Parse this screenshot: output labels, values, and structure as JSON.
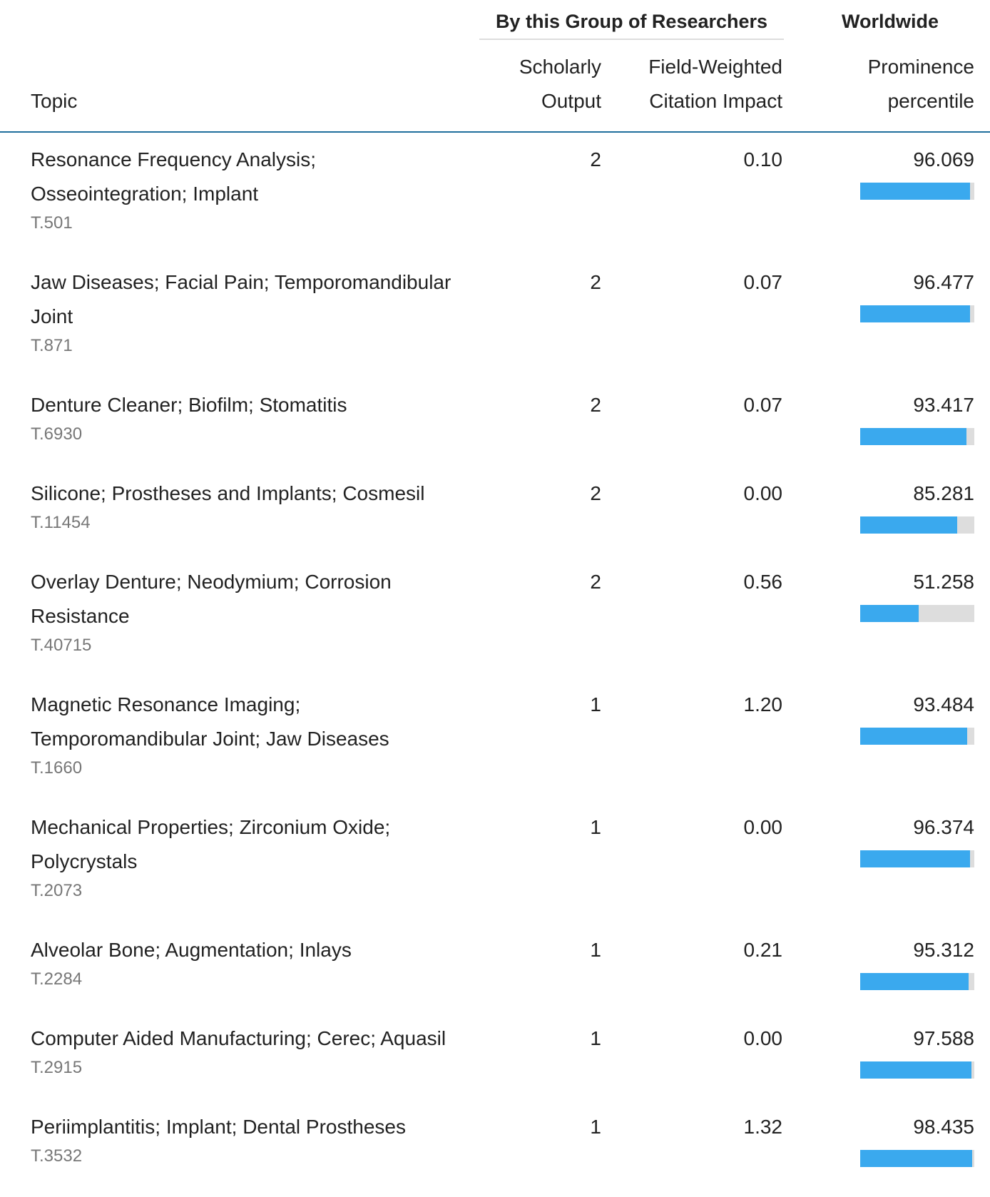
{
  "header": {
    "group_title": "By this Group of Researchers",
    "worldwide_title": "Worldwide",
    "columns": {
      "topic": [
        "Topic"
      ],
      "output": [
        "Scholarly",
        "Output"
      ],
      "fwci": [
        "Field-Weighted",
        "Citation Impact"
      ],
      "percentile": [
        "Prominence",
        "percentile"
      ]
    }
  },
  "rows": [
    {
      "topic": "Resonance Frequency Analysis; Osseointegration; Implant",
      "code": "T.501",
      "output": 2,
      "fwci": "0.10",
      "percentile": 96.069
    },
    {
      "topic": "Jaw Diseases; Facial Pain; Temporomandibular Joint",
      "code": "T.871",
      "output": 2,
      "fwci": "0.07",
      "percentile": 96.477
    },
    {
      "topic": "Denture Cleaner; Biofilm; Stomatitis",
      "code": "T.6930",
      "output": 2,
      "fwci": "0.07",
      "percentile": 93.417
    },
    {
      "topic": "Silicone; Prostheses and Implants; Cosmesil",
      "code": "T.11454",
      "output": 2,
      "fwci": "0.00",
      "percentile": 85.281
    },
    {
      "topic": "Overlay Denture; Neodymium; Corrosion Resistance",
      "code": "T.40715",
      "output": 2,
      "fwci": "0.56",
      "percentile": 51.258
    },
    {
      "topic": "Magnetic Resonance Imaging; Temporomandibular Joint; Jaw Diseases",
      "code": "T.1660",
      "output": 1,
      "fwci": "1.20",
      "percentile": 93.484
    },
    {
      "topic": "Mechanical Properties; Zirconium Oxide; Polycrystals",
      "code": "T.2073",
      "output": 1,
      "fwci": "0.00",
      "percentile": 96.374
    },
    {
      "topic": "Alveolar Bone; Augmentation; Inlays",
      "code": "T.2284",
      "output": 1,
      "fwci": "0.21",
      "percentile": 95.312
    },
    {
      "topic": "Computer Aided Manufacturing; Cerec; Aquasil",
      "code": "T.2915",
      "output": 1,
      "fwci": "0.00",
      "percentile": 97.588
    },
    {
      "topic": "Periimplantitis; Implant; Dental Prostheses",
      "code": "T.3532",
      "output": 1,
      "fwci": "1.32",
      "percentile": 98.435
    }
  ]
}
